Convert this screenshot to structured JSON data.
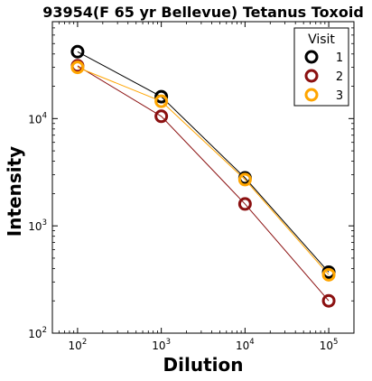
{
  "chart_data": {
    "type": "line",
    "title": "93954(F 65 yr Bellevue) Tetanus Toxoid",
    "xlabel": "Dilution",
    "ylabel": "Intensity",
    "xscale": "log",
    "yscale": "log",
    "xlim": [
      50,
      200000
    ],
    "ylim": [
      100,
      80000
    ],
    "x": [
      100,
      1000,
      10000,
      100000
    ],
    "x_ticks": [
      {
        "value": 100,
        "base": "10",
        "exp": "2"
      },
      {
        "value": 1000,
        "base": "10",
        "exp": "3"
      },
      {
        "value": 10000,
        "base": "10",
        "exp": "4"
      },
      {
        "value": 100000,
        "base": "10",
        "exp": "5"
      }
    ],
    "y_ticks": [
      {
        "value": 100,
        "base": "10",
        "exp": "2"
      },
      {
        "value": 1000,
        "base": "10",
        "exp": "3"
      },
      {
        "value": 10000,
        "base": "10",
        "exp": "4"
      }
    ],
    "legend": {
      "title": "Visit",
      "position": "top-right"
    },
    "grid": false,
    "series": [
      {
        "name": "1",
        "color": "#000000",
        "values": [
          42000,
          16000,
          2800,
          370
        ]
      },
      {
        "name": "2",
        "color": "#8b1010",
        "values": [
          31000,
          10500,
          1600,
          200
        ]
      },
      {
        "name": "3",
        "color": "#ffa500",
        "values": [
          30000,
          14500,
          2700,
          350
        ]
      }
    ]
  }
}
